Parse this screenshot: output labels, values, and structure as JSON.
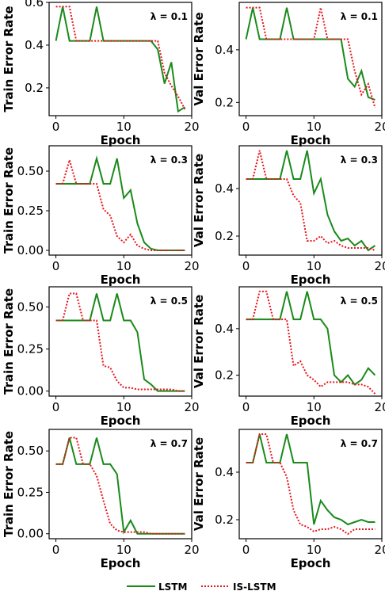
{
  "chart_data": [
    {
      "type": "line",
      "panel": "train",
      "lambda": "λ = 0.1",
      "xlabel": "Epoch",
      "ylabel": "Train Error Rate",
      "xlim": [
        -1,
        20
      ],
      "ylim": [
        0.07,
        0.6
      ],
      "xticks": [
        0,
        10,
        20
      ],
      "yticks": [
        0.2,
        0.4,
        0.6
      ],
      "ytick_labels": [
        "0.2",
        "0.4",
        "0.6"
      ],
      "x": [
        0,
        1,
        2,
        3,
        4,
        5,
        6,
        7,
        8,
        9,
        10,
        11,
        12,
        13,
        14,
        15,
        16,
        17,
        18,
        19
      ],
      "series": [
        {
          "name": "LSTM",
          "color": "#1a8a1a",
          "dash": "solid",
          "values": [
            0.42,
            0.58,
            0.42,
            0.42,
            0.42,
            0.42,
            0.58,
            0.42,
            0.42,
            0.42,
            0.42,
            0.42,
            0.42,
            0.42,
            0.42,
            0.38,
            0.22,
            0.32,
            0.09,
            0.11
          ]
        },
        {
          "name": "IS-LSTM",
          "color": "#e8141b",
          "dash": "dotted",
          "values": [
            0.58,
            0.58,
            0.58,
            0.42,
            0.42,
            0.42,
            0.42,
            0.42,
            0.42,
            0.42,
            0.42,
            0.42,
            0.42,
            0.42,
            0.42,
            0.42,
            0.27,
            0.21,
            0.16,
            0.1
          ]
        }
      ]
    },
    {
      "type": "line",
      "panel": "val",
      "lambda": "λ = 0.1",
      "xlabel": "Epoch",
      "ylabel": "Val Error Rate",
      "xlim": [
        -1,
        20
      ],
      "ylim": [
        0.15,
        0.58
      ],
      "xticks": [
        0,
        10,
        20
      ],
      "yticks": [
        0.2,
        0.4
      ],
      "ytick_labels": [
        "0.2",
        "0.4"
      ],
      "x": [
        0,
        1,
        2,
        3,
        4,
        5,
        6,
        7,
        8,
        9,
        10,
        11,
        12,
        13,
        14,
        15,
        16,
        17,
        18,
        19
      ],
      "series": [
        {
          "name": "LSTM",
          "color": "#1a8a1a",
          "dash": "solid",
          "values": [
            0.44,
            0.56,
            0.44,
            0.44,
            0.44,
            0.44,
            0.56,
            0.44,
            0.44,
            0.44,
            0.44,
            0.44,
            0.44,
            0.44,
            0.44,
            0.29,
            0.26,
            0.32,
            0.22,
            0.21
          ]
        },
        {
          "name": "IS-LSTM",
          "color": "#e8141b",
          "dash": "dotted",
          "values": [
            0.56,
            0.56,
            0.56,
            0.44,
            0.44,
            0.44,
            0.44,
            0.44,
            0.44,
            0.44,
            0.44,
            0.56,
            0.44,
            0.44,
            0.44,
            0.44,
            0.32,
            0.23,
            0.27,
            0.18
          ]
        }
      ]
    },
    {
      "type": "line",
      "panel": "train",
      "lambda": "λ = 0.3",
      "xlabel": "Epoch",
      "ylabel": "Train Error Rate",
      "xlim": [
        -1,
        20
      ],
      "ylim": [
        -0.03,
        0.66
      ],
      "xticks": [
        0,
        10,
        20
      ],
      "yticks": [
        0,
        0.25,
        0.5
      ],
      "ytick_labels": [
        "0.00",
        "0.25",
        "0.50"
      ],
      "x": [
        0,
        1,
        2,
        3,
        4,
        5,
        6,
        7,
        8,
        9,
        10,
        11,
        12,
        13,
        14,
        15,
        16,
        17,
        18,
        19
      ],
      "series": [
        {
          "name": "LSTM",
          "color": "#1a8a1a",
          "dash": "solid",
          "values": [
            0.42,
            0.42,
            0.42,
            0.42,
            0.42,
            0.42,
            0.58,
            0.42,
            0.42,
            0.58,
            0.33,
            0.38,
            0.17,
            0.05,
            0.01,
            0.0,
            0.0,
            0.0,
            0.0,
            0.0
          ]
        },
        {
          "name": "IS-LSTM",
          "color": "#e8141b",
          "dash": "dotted",
          "values": [
            0.42,
            0.42,
            0.57,
            0.42,
            0.42,
            0.42,
            0.42,
            0.26,
            0.22,
            0.09,
            0.05,
            0.1,
            0.03,
            0.01,
            0.0,
            0.0,
            0.0,
            0.0,
            0.0,
            0.0
          ]
        }
      ]
    },
    {
      "type": "line",
      "panel": "val",
      "lambda": "λ = 0.3",
      "xlabel": "Epoch",
      "ylabel": "Val Error Rate",
      "xlim": [
        -1,
        20
      ],
      "ylim": [
        0.12,
        0.58
      ],
      "xticks": [
        0,
        10,
        20
      ],
      "yticks": [
        0.2,
        0.4
      ],
      "ytick_labels": [
        "0.2",
        "0.4"
      ],
      "x": [
        0,
        1,
        2,
        3,
        4,
        5,
        6,
        7,
        8,
        9,
        10,
        11,
        12,
        13,
        14,
        15,
        16,
        17,
        18,
        19
      ],
      "series": [
        {
          "name": "LSTM",
          "color": "#1a8a1a",
          "dash": "solid",
          "values": [
            0.44,
            0.44,
            0.44,
            0.44,
            0.44,
            0.44,
            0.56,
            0.44,
            0.44,
            0.56,
            0.38,
            0.44,
            0.29,
            0.22,
            0.18,
            0.19,
            0.16,
            0.18,
            0.14,
            0.16
          ]
        },
        {
          "name": "IS-LSTM",
          "color": "#e8141b",
          "dash": "dotted",
          "values": [
            0.44,
            0.44,
            0.56,
            0.44,
            0.44,
            0.44,
            0.44,
            0.37,
            0.34,
            0.18,
            0.18,
            0.2,
            0.17,
            0.18,
            0.16,
            0.15,
            0.15,
            0.15,
            0.15,
            0.14
          ]
        }
      ]
    },
    {
      "type": "line",
      "panel": "train",
      "lambda": "λ = 0.5",
      "xlabel": "Epoch",
      "ylabel": "Train Error Rate",
      "xlim": [
        -1,
        20
      ],
      "ylim": [
        -0.03,
        0.62
      ],
      "xticks": [
        0,
        10,
        20
      ],
      "yticks": [
        0,
        0.25,
        0.5
      ],
      "ytick_labels": [
        "0.00",
        "0.25",
        "0.50"
      ],
      "x": [
        0,
        1,
        2,
        3,
        4,
        5,
        6,
        7,
        8,
        9,
        10,
        11,
        12,
        13,
        14,
        15,
        16,
        17,
        18,
        19
      ],
      "series": [
        {
          "name": "LSTM",
          "color": "#1a8a1a",
          "dash": "solid",
          "values": [
            0.42,
            0.42,
            0.42,
            0.42,
            0.42,
            0.42,
            0.58,
            0.42,
            0.42,
            0.58,
            0.42,
            0.42,
            0.35,
            0.07,
            0.04,
            0.0,
            0.0,
            0.0,
            0.0,
            0.0
          ]
        },
        {
          "name": "IS-LSTM",
          "color": "#e8141b",
          "dash": "dotted",
          "values": [
            0.42,
            0.42,
            0.58,
            0.58,
            0.42,
            0.42,
            0.42,
            0.15,
            0.14,
            0.06,
            0.02,
            0.02,
            0.01,
            0.01,
            0.01,
            0.01,
            0.01,
            0.01,
            0.0,
            0.0
          ]
        }
      ]
    },
    {
      "type": "line",
      "panel": "val",
      "lambda": "λ = 0.5",
      "xlabel": "Epoch",
      "ylabel": "Val Error Rate",
      "xlim": [
        -1,
        20
      ],
      "ylim": [
        0.11,
        0.58
      ],
      "xticks": [
        0,
        10,
        20
      ],
      "yticks": [
        0.2,
        0.4
      ],
      "ytick_labels": [
        "0.2",
        "0.4"
      ],
      "x": [
        0,
        1,
        2,
        3,
        4,
        5,
        6,
        7,
        8,
        9,
        10,
        11,
        12,
        13,
        14,
        15,
        16,
        17,
        18,
        19
      ],
      "series": [
        {
          "name": "LSTM",
          "color": "#1a8a1a",
          "dash": "solid",
          "values": [
            0.44,
            0.44,
            0.44,
            0.44,
            0.44,
            0.44,
            0.56,
            0.44,
            0.44,
            0.56,
            0.44,
            0.44,
            0.4,
            0.2,
            0.17,
            0.2,
            0.16,
            0.18,
            0.23,
            0.2
          ]
        },
        {
          "name": "IS-LSTM",
          "color": "#e8141b",
          "dash": "dotted",
          "values": [
            0.44,
            0.44,
            0.56,
            0.56,
            0.44,
            0.44,
            0.44,
            0.24,
            0.26,
            0.2,
            0.18,
            0.15,
            0.17,
            0.17,
            0.17,
            0.17,
            0.16,
            0.16,
            0.15,
            0.12
          ]
        }
      ]
    },
    {
      "type": "line",
      "panel": "train",
      "lambda": "λ = 0.7",
      "xlabel": "Epoch",
      "ylabel": "Train Error Rate",
      "xlim": [
        -1,
        20
      ],
      "ylim": [
        -0.03,
        0.63
      ],
      "xticks": [
        0,
        10,
        20
      ],
      "yticks": [
        0,
        0.25,
        0.5
      ],
      "ytick_labels": [
        "0.00",
        "0.25",
        "0.50"
      ],
      "x": [
        0,
        1,
        2,
        3,
        4,
        5,
        6,
        7,
        8,
        9,
        10,
        11,
        12,
        13,
        14,
        15,
        16,
        17,
        18,
        19
      ],
      "series": [
        {
          "name": "LSTM",
          "color": "#1a8a1a",
          "dash": "solid",
          "values": [
            0.42,
            0.42,
            0.58,
            0.42,
            0.42,
            0.42,
            0.58,
            0.42,
            0.42,
            0.36,
            0.01,
            0.08,
            0.0,
            0.0,
            0.0,
            0.0,
            0.0,
            0.0,
            0.0,
            0.0
          ]
        },
        {
          "name": "IS-LSTM",
          "color": "#e8141b",
          "dash": "dotted",
          "values": [
            0.42,
            0.42,
            0.58,
            0.58,
            0.42,
            0.42,
            0.35,
            0.2,
            0.06,
            0.02,
            0.01,
            0.01,
            0.01,
            0.01,
            0.0,
            0.0,
            0.0,
            0.0,
            0.0,
            0.0
          ]
        }
      ]
    },
    {
      "type": "line",
      "panel": "val",
      "lambda": "λ = 0.7",
      "xlabel": "Epoch",
      "ylabel": "Val Error Rate",
      "xlim": [
        -1,
        20
      ],
      "ylim": [
        0.12,
        0.58
      ],
      "xticks": [
        0,
        10,
        20
      ],
      "yticks": [
        0.2,
        0.4
      ],
      "ytick_labels": [
        "0.2",
        "0.4"
      ],
      "x": [
        0,
        1,
        2,
        3,
        4,
        5,
        6,
        7,
        8,
        9,
        10,
        11,
        12,
        13,
        14,
        15,
        16,
        17,
        18,
        19
      ],
      "series": [
        {
          "name": "LSTM",
          "color": "#1a8a1a",
          "dash": "solid",
          "values": [
            0.44,
            0.44,
            0.56,
            0.44,
            0.44,
            0.44,
            0.56,
            0.44,
            0.44,
            0.44,
            0.18,
            0.28,
            0.24,
            0.21,
            0.2,
            0.18,
            0.19,
            0.2,
            0.19,
            0.19
          ]
        },
        {
          "name": "IS-LSTM",
          "color": "#e8141b",
          "dash": "dotted",
          "values": [
            0.44,
            0.44,
            0.56,
            0.56,
            0.44,
            0.44,
            0.38,
            0.24,
            0.18,
            0.17,
            0.15,
            0.16,
            0.16,
            0.17,
            0.16,
            0.14,
            0.16,
            0.16,
            0.16,
            0.16
          ]
        }
      ]
    }
  ],
  "legend": {
    "placement": "bottom-center",
    "items": [
      {
        "label": "LSTM",
        "color": "#1a8a1a",
        "dash": "solid"
      },
      {
        "label": "IS-LSTM",
        "color": "#e8141b",
        "dash": "dotted"
      }
    ]
  }
}
